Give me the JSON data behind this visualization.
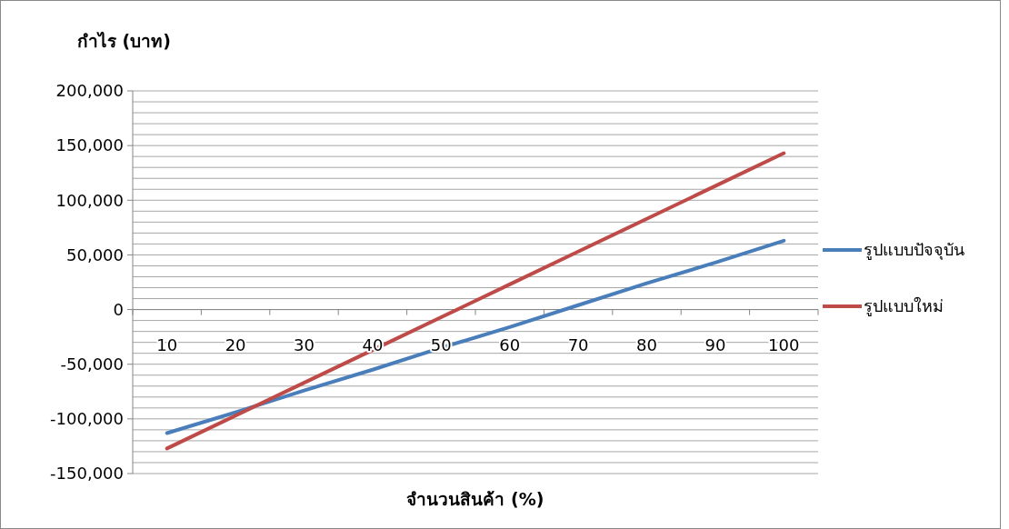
{
  "chart_data": {
    "type": "line",
    "xlabel": "จำนวนสินค้า (%)",
    "ylabel": "กำไร (บาท)",
    "categories": [
      "10",
      "20",
      "30",
      "40",
      "50",
      "60",
      "70",
      "80",
      "90",
      "100"
    ],
    "series": [
      {
        "name": "รูปแบบปัจจุบัน",
        "color": "#4a7ebb",
        "values": [
          -113000,
          -94000,
          -74000,
          -55000,
          -35000,
          -16000,
          4000,
          24000,
          43000,
          63000
        ]
      },
      {
        "name": "รูปแบบใหม่",
        "color": "#be4b48",
        "values": [
          -127000,
          -97000,
          -67000,
          -37000,
          -7000,
          23000,
          53000,
          83000,
          113000,
          143000
        ]
      }
    ],
    "ylim": [
      -150000,
      200000
    ],
    "yticks": [
      {
        "value": -150000,
        "label": "-150,000"
      },
      {
        "value": -140000,
        "label": null
      },
      {
        "value": -130000,
        "label": null
      },
      {
        "value": -120000,
        "label": null
      },
      {
        "value": -110000,
        "label": null
      },
      {
        "value": -100000,
        "label": "-100,000"
      },
      {
        "value": -90000,
        "label": null
      },
      {
        "value": -80000,
        "label": null
      },
      {
        "value": -70000,
        "label": null
      },
      {
        "value": -60000,
        "label": null
      },
      {
        "value": -50000,
        "label": "-50,000"
      },
      {
        "value": -40000,
        "label": null
      },
      {
        "value": -30000,
        "label": null
      },
      {
        "value": -20000,
        "label": null
      },
      {
        "value": -10000,
        "label": null
      },
      0,
      {
        "value": 10000,
        "label": null
      },
      {
        "value": 20000,
        "label": null
      },
      {
        "value": 30000,
        "label": null
      },
      {
        "value": 40000,
        "label": null
      },
      {
        "value": 50000,
        "label": "50,000"
      },
      {
        "value": 60000,
        "label": null
      },
      {
        "value": 70000,
        "label": null
      },
      {
        "value": 80000,
        "label": null
      },
      {
        "value": 90000,
        "label": null
      },
      {
        "value": 100000,
        "label": "100,000"
      },
      {
        "value": 110000,
        "label": null
      },
      {
        "value": 120000,
        "label": null
      },
      {
        "value": 130000,
        "label": null
      },
      {
        "value": 140000,
        "label": null
      },
      {
        "value": 150000,
        "label": "150,000"
      },
      {
        "value": 160000,
        "label": null
      },
      {
        "value": 170000,
        "label": null
      },
      {
        "value": 180000,
        "label": null
      },
      {
        "value": 190000,
        "label": null
      },
      {
        "value": 200000,
        "label": "200,000"
      }
    ],
    "grid": "y",
    "legend": "right",
    "marker": "none",
    "line_style": "solid"
  }
}
